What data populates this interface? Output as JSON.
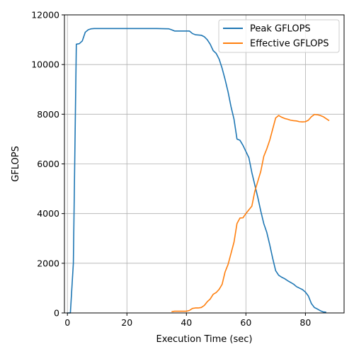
{
  "chart_data": {
    "type": "line",
    "title": "",
    "xlabel": "Execution Time (sec)",
    "ylabel": "GFLOPS",
    "xlim": [
      -1,
      93
    ],
    "ylim": [
      0,
      12000
    ],
    "x_ticks": [
      0,
      20,
      40,
      60,
      80
    ],
    "y_ticks": [
      0,
      2000,
      4000,
      6000,
      8000,
      10000,
      12000
    ],
    "grid": true,
    "legend_position": "top-right",
    "series": [
      {
        "name": "Peak GFLOPS",
        "color": "#1f77b4",
        "points": [
          [
            0,
            0
          ],
          [
            1,
            0
          ],
          [
            2,
            2000
          ],
          [
            3,
            10820
          ],
          [
            4,
            10840
          ],
          [
            5,
            10950
          ],
          [
            6,
            11300
          ],
          [
            7,
            11400
          ],
          [
            8,
            11440
          ],
          [
            9,
            11450
          ],
          [
            10,
            11450
          ],
          [
            15,
            11450
          ],
          [
            20,
            11450
          ],
          [
            25,
            11450
          ],
          [
            30,
            11450
          ],
          [
            34,
            11440
          ],
          [
            35,
            11400
          ],
          [
            36,
            11350
          ],
          [
            38,
            11350
          ],
          [
            41,
            11350
          ],
          [
            42,
            11250
          ],
          [
            43,
            11200
          ],
          [
            45,
            11180
          ],
          [
            46,
            11120
          ],
          [
            47,
            11000
          ],
          [
            48,
            10820
          ],
          [
            49,
            10560
          ],
          [
            50,
            10450
          ],
          [
            51,
            10220
          ],
          [
            52,
            9850
          ],
          [
            53,
            9400
          ],
          [
            54,
            8900
          ],
          [
            55,
            8300
          ],
          [
            56,
            7800
          ],
          [
            57,
            7000
          ],
          [
            58,
            6950
          ],
          [
            59,
            6750
          ],
          [
            60,
            6500
          ],
          [
            61,
            6250
          ],
          [
            62,
            5650
          ],
          [
            63,
            5150
          ],
          [
            64,
            4650
          ],
          [
            65,
            4100
          ],
          [
            66,
            3600
          ],
          [
            67,
            3250
          ],
          [
            68,
            2750
          ],
          [
            69,
            2200
          ],
          [
            70,
            1700
          ],
          [
            71,
            1520
          ],
          [
            72,
            1440
          ],
          [
            73,
            1380
          ],
          [
            74,
            1300
          ],
          [
            75,
            1230
          ],
          [
            76,
            1160
          ],
          [
            77,
            1060
          ],
          [
            78,
            1000
          ],
          [
            79,
            940
          ],
          [
            80,
            840
          ],
          [
            81,
            680
          ],
          [
            82,
            380
          ],
          [
            83,
            220
          ],
          [
            84,
            160
          ],
          [
            85,
            90
          ],
          [
            86,
            40
          ],
          [
            87,
            30
          ]
        ]
      },
      {
        "name": "Effective GFLOPS",
        "color": "#ff7f0e",
        "points": [
          [
            35,
            50
          ],
          [
            36,
            70
          ],
          [
            37,
            70
          ],
          [
            38,
            70
          ],
          [
            39,
            70
          ],
          [
            40,
            70
          ],
          [
            41,
            100
          ],
          [
            42,
            180
          ],
          [
            43,
            200
          ],
          [
            44,
            200
          ],
          [
            45,
            220
          ],
          [
            46,
            300
          ],
          [
            47,
            450
          ],
          [
            48,
            560
          ],
          [
            49,
            750
          ],
          [
            50,
            820
          ],
          [
            51,
            950
          ],
          [
            52,
            1150
          ],
          [
            53,
            1650
          ],
          [
            54,
            1950
          ],
          [
            55,
            2400
          ],
          [
            56,
            2850
          ],
          [
            57,
            3600
          ],
          [
            58,
            3820
          ],
          [
            59,
            3830
          ],
          [
            60,
            4000
          ],
          [
            61,
            4150
          ],
          [
            62,
            4300
          ],
          [
            63,
            4900
          ],
          [
            64,
            5300
          ],
          [
            65,
            5700
          ],
          [
            66,
            6300
          ],
          [
            67,
            6600
          ],
          [
            68,
            6950
          ],
          [
            69,
            7400
          ],
          [
            70,
            7850
          ],
          [
            71,
            7950
          ],
          [
            72,
            7880
          ],
          [
            73,
            7830
          ],
          [
            74,
            7800
          ],
          [
            75,
            7760
          ],
          [
            76,
            7740
          ],
          [
            77,
            7730
          ],
          [
            78,
            7700
          ],
          [
            79,
            7690
          ],
          [
            80,
            7700
          ],
          [
            81,
            7760
          ],
          [
            82,
            7900
          ],
          [
            83,
            7990
          ],
          [
            84,
            7980
          ],
          [
            85,
            7950
          ],
          [
            86,
            7900
          ],
          [
            87,
            7820
          ],
          [
            88,
            7740
          ]
        ]
      }
    ]
  }
}
